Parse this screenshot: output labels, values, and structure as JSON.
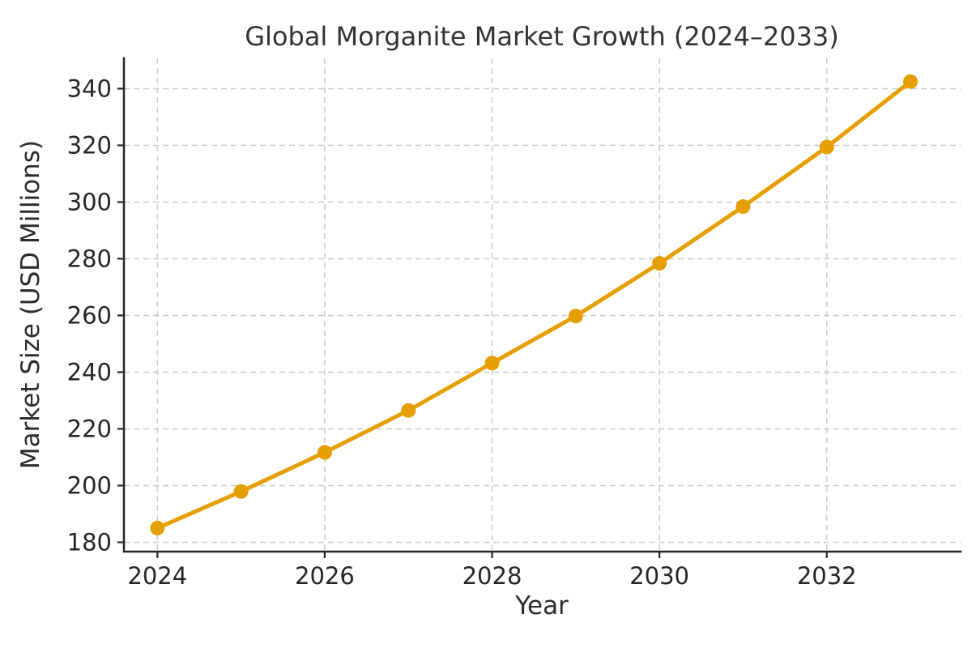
{
  "chart_data": {
    "type": "line",
    "title": "Global Morganite Market Growth (2024–2033)",
    "xlabel": "Year",
    "ylabel": "Market Size (USD Millions)",
    "x": [
      2024,
      2025,
      2026,
      2027,
      2028,
      2029,
      2030,
      2031,
      2032,
      2033
    ],
    "values": [
      185.0,
      197.9,
      211.7,
      226.5,
      243.2,
      259.8,
      278.4,
      298.4,
      319.4,
      342.5
    ],
    "series_name": "Market Size (USD Millions)",
    "xticks": [
      2024,
      2026,
      2028,
      2030,
      2032
    ],
    "yticks": [
      180,
      200,
      220,
      240,
      260,
      280,
      300,
      320,
      340
    ],
    "xlim": [
      2023.6,
      2033.6
    ],
    "ylim": [
      176.7,
      350.7
    ],
    "grid": true,
    "grid_style": "dashed",
    "legend": false,
    "marker": "circle",
    "marker_size": 9
  },
  "colors": {
    "line": "#E69F00",
    "marker": "#E69F00",
    "grid": "#cccccc",
    "axis": "#262626",
    "tick_text": "#262626",
    "title_text": "#333333",
    "label_text": "#2b2b2b",
    "background": "#ffffff"
  }
}
